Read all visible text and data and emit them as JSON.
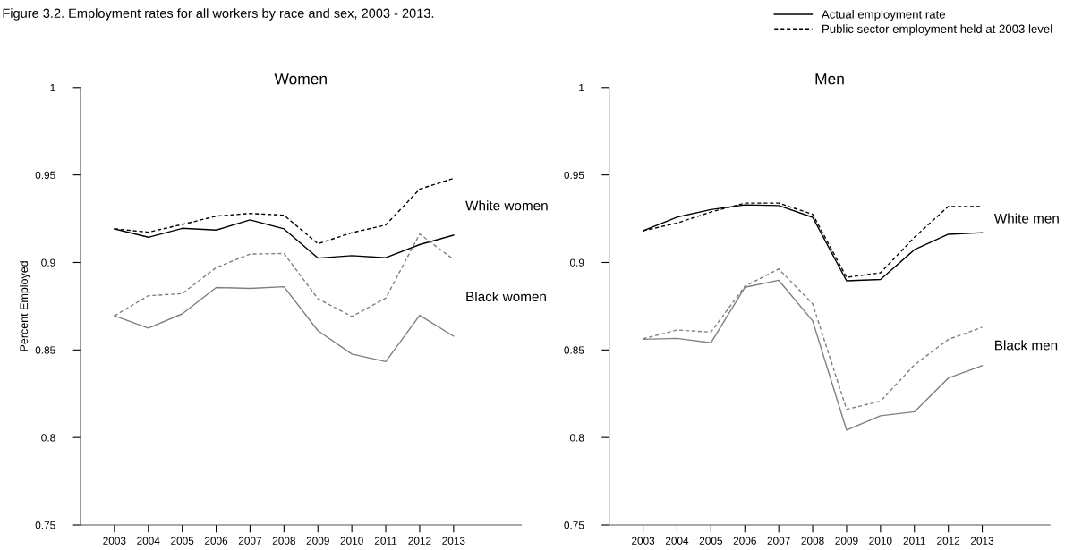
{
  "chart_data": [
    {
      "type": "line",
      "title": "Women",
      "ylabel": "Percent Employed",
      "x": [
        2003,
        2004,
        2005,
        2006,
        2007,
        2008,
        2009,
        2010,
        2011,
        2012,
        2013
      ],
      "xlim": [
        2002,
        2015
      ],
      "xticks": [
        2003,
        2004,
        2005,
        2006,
        2007,
        2008,
        2009,
        2010,
        2011,
        2012,
        2013
      ],
      "ylim": [
        0.75,
        1
      ],
      "yticks": [
        0.75,
        0.8,
        0.85,
        0.9,
        0.95,
        1
      ],
      "grid": false,
      "legend": "top right",
      "annotations": [
        "Figure 3.2. Employment rates for all workers by race and sex, 2003 - 2013.",
        "Actual employment rate",
        "Public sector employment held at 2003 level"
      ],
      "series": [
        {
          "name": "White women",
          "color": "#000000",
          "line_style": "solid",
          "values": [
            0.9192,
            0.9144,
            0.9195,
            0.9185,
            0.9243,
            0.9192,
            0.9025,
            0.9039,
            0.9027,
            0.9102,
            0.9156
          ]
        },
        {
          "color": "#000000",
          "line_style": "dashed",
          "values": [
            0.9192,
            0.9173,
            0.9217,
            0.9265,
            0.928,
            0.927,
            0.9107,
            0.917,
            0.9214,
            0.9419,
            0.948
          ]
        },
        {
          "name": "Black women",
          "color": "#7f7f7f",
          "line_style": "solid",
          "values": [
            0.8695,
            0.8625,
            0.8706,
            0.8857,
            0.8852,
            0.8861,
            0.861,
            0.8477,
            0.8433,
            0.8698,
            0.8579
          ]
        },
        {
          "color": "#7f7f7f",
          "line_style": "dashed",
          "values": [
            0.8695,
            0.881,
            0.8822,
            0.8971,
            0.9048,
            0.9051,
            0.8793,
            0.8691,
            0.8796,
            0.9163,
            0.9017
          ]
        }
      ]
    },
    {
      "type": "line",
      "title": "Men",
      "x": [
        2003,
        2004,
        2005,
        2006,
        2007,
        2008,
        2009,
        2010,
        2011,
        2012,
        2013
      ],
      "xlim": [
        2002,
        2015
      ],
      "xticks": [
        2003,
        2004,
        2005,
        2006,
        2007,
        2008,
        2009,
        2010,
        2011,
        2012,
        2013
      ],
      "ylim": [
        0.75,
        1
      ],
      "yticks": [
        0.75,
        0.8,
        0.85,
        0.9,
        0.95,
        1
      ],
      "grid": false,
      "series": [
        {
          "name": "White men",
          "color": "#000000",
          "line_style": "solid",
          "values": [
            0.9181,
            0.9259,
            0.9302,
            0.9329,
            0.9325,
            0.9258,
            0.8895,
            0.8903,
            0.9073,
            0.9161,
            0.917
          ]
        },
        {
          "color": "#000000",
          "line_style": "dashed",
          "values": [
            0.9181,
            0.9225,
            0.9288,
            0.9339,
            0.9339,
            0.9275,
            0.8915,
            0.8941,
            0.9144,
            0.932,
            0.932
          ]
        },
        {
          "name": "Black men",
          "color": "#7f7f7f",
          "line_style": "solid",
          "values": [
            0.8561,
            0.8566,
            0.8541,
            0.8858,
            0.8898,
            0.8666,
            0.8042,
            0.8124,
            0.8147,
            0.834,
            0.841
          ]
        },
        {
          "color": "#7f7f7f",
          "line_style": "dashed",
          "values": [
            0.8564,
            0.8614,
            0.8602,
            0.8864,
            0.8963,
            0.8763,
            0.8161,
            0.8207,
            0.8415,
            0.856,
            0.863
          ]
        }
      ]
    }
  ]
}
